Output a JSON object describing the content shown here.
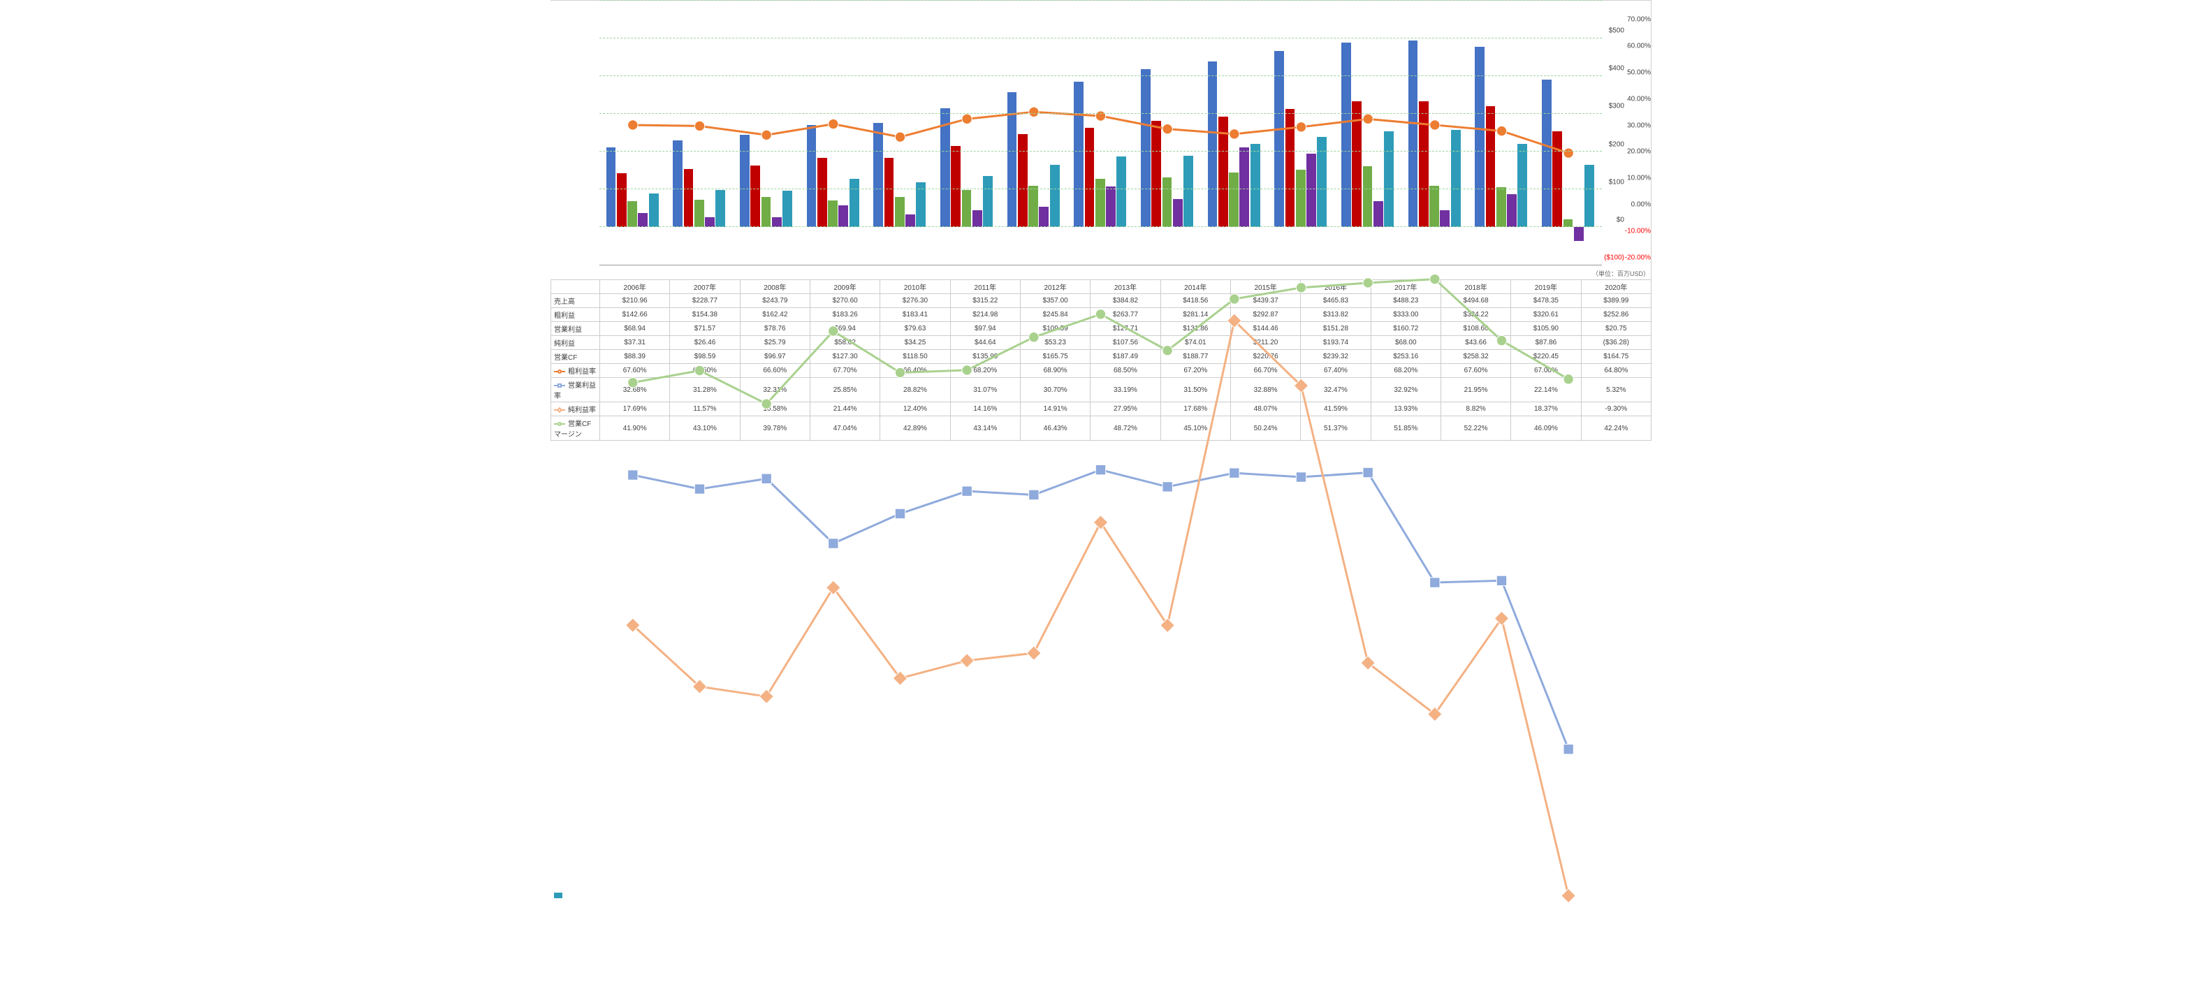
{
  "categories": [
    "2006年",
    "2007年",
    "2008年",
    "2009年",
    "2010年",
    "2011年",
    "2012年",
    "2013年",
    "2014年",
    "2015年",
    "2016年",
    "2017年",
    "2018年",
    "2019年",
    "2020年"
  ],
  "unit_note": "（単位：百万USD）",
  "left_axis": {
    "min": -100,
    "max": 600,
    "step": 100,
    "format": "dollar",
    "neg_color": "#ff0000"
  },
  "right_axis": {
    "min": -20,
    "max": 80,
    "step": 10,
    "format": "percent",
    "neg_color": "#ff0000"
  },
  "chart": {
    "plot_bg": "#ffffff",
    "grid_color": "#9fd49f",
    "bar_series": [
      {
        "key": "sales",
        "label": "売上高",
        "color": "#4472c4",
        "values": [
          210.96,
          228.77,
          243.79,
          270.6,
          276.3,
          315.22,
          357.0,
          384.82,
          418.56,
          439.37,
          465.83,
          488.23,
          494.68,
          478.35,
          389.99
        ]
      },
      {
        "key": "gross",
        "label": "粗利益",
        "color": "#c00000",
        "values": [
          142.66,
          154.38,
          162.42,
          183.26,
          183.41,
          214.98,
          245.84,
          263.77,
          281.14,
          292.87,
          313.82,
          333.0,
          334.22,
          320.61,
          252.86
        ]
      },
      {
        "key": "op",
        "label": "営業利益",
        "color": "#70ad47",
        "values": [
          68.94,
          71.57,
          78.76,
          69.94,
          79.63,
          97.94,
          109.59,
          127.71,
          131.86,
          144.46,
          151.28,
          160.72,
          108.6,
          105.9,
          20.75
        ]
      },
      {
        "key": "net",
        "label": "純利益",
        "color": "#7030a0",
        "values": [
          37.31,
          26.46,
          25.79,
          58.02,
          34.25,
          44.64,
          53.23,
          107.56,
          74.01,
          211.2,
          193.74,
          68.0,
          43.66,
          87.86,
          -36.28
        ]
      },
      {
        "key": "cf",
        "label": "営業CF",
        "color": "#2e9cb8",
        "values": [
          88.39,
          98.59,
          96.97,
          127.3,
          118.5,
          135.99,
          165.75,
          187.49,
          188.77,
          220.76,
          239.32,
          253.16,
          258.32,
          220.45,
          164.75
        ]
      }
    ],
    "line_series": [
      {
        "key": "gross_m",
        "label": "粗利益率",
        "color": "#ed7d31",
        "marker": "circle",
        "values": [
          67.6,
          67.5,
          66.6,
          67.7,
          66.4,
          68.2,
          68.9,
          68.5,
          67.2,
          66.7,
          67.4,
          68.2,
          67.6,
          67.0,
          64.8
        ]
      },
      {
        "key": "op_m",
        "label": "営業利益率",
        "color": "#8faadc",
        "marker": "square",
        "values": [
          32.68,
          31.28,
          32.31,
          25.85,
          28.82,
          31.07,
          30.7,
          33.19,
          31.5,
          32.88,
          32.47,
          32.92,
          21.95,
          22.14,
          5.32
        ]
      },
      {
        "key": "net_m",
        "label": "純利益率",
        "color": "#f4b183",
        "marker": "diamond",
        "values": [
          17.69,
          11.57,
          10.58,
          21.44,
          12.4,
          14.16,
          14.91,
          27.95,
          17.68,
          48.07,
          41.59,
          13.93,
          8.82,
          18.37,
          -9.3
        ]
      },
      {
        "key": "cf_m",
        "label": "営業CFマージン",
        "color": "#a9d18e",
        "marker": "circle",
        "values": [
          41.9,
          43.1,
          39.78,
          47.04,
          42.89,
          43.14,
          46.43,
          48.72,
          45.1,
          50.24,
          51.37,
          51.85,
          52.22,
          46.09,
          42.24
        ]
      }
    ]
  },
  "table": {
    "rows": [
      {
        "key": "sales",
        "label": "売上高",
        "fmt": "money",
        "swatch": {
          "type": "bar",
          "color": "#4472c4"
        }
      },
      {
        "key": "gross",
        "label": "粗利益",
        "fmt": "money",
        "swatch": {
          "type": "bar",
          "color": "#c00000"
        }
      },
      {
        "key": "op",
        "label": "営業利益",
        "fmt": "money",
        "swatch": {
          "type": "bar",
          "color": "#70ad47"
        }
      },
      {
        "key": "net",
        "label": "純利益",
        "fmt": "money",
        "swatch": {
          "type": "bar",
          "color": "#7030a0"
        }
      },
      {
        "key": "cf",
        "label": "営業CF",
        "fmt": "money",
        "swatch": {
          "type": "bar",
          "color": "#2e9cb8"
        }
      },
      {
        "key": "gross_m",
        "label": "粗利益率",
        "fmt": "pct",
        "swatch": {
          "type": "line",
          "color": "#ed7d31",
          "marker": "circle"
        }
      },
      {
        "key": "op_m",
        "label": "営業利益率",
        "fmt": "pct",
        "swatch": {
          "type": "line",
          "color": "#8faadc",
          "marker": "square"
        }
      },
      {
        "key": "net_m",
        "label": "純利益率",
        "fmt": "pct",
        "swatch": {
          "type": "line",
          "color": "#f4b183",
          "marker": "diamond"
        }
      },
      {
        "key": "cf_m",
        "label": "営業CFマージン",
        "fmt": "pct",
        "swatch": {
          "type": "line",
          "color": "#a9d18e",
          "marker": "circle"
        }
      }
    ]
  }
}
